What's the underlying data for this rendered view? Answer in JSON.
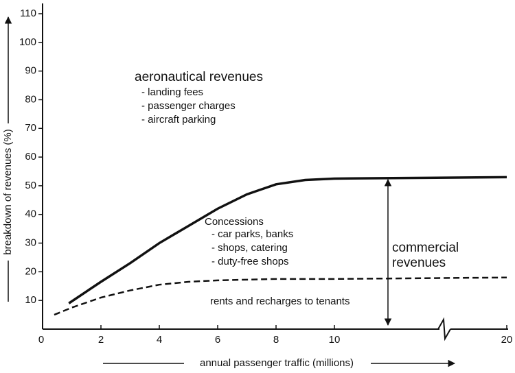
{
  "chart_data": {
    "type": "line",
    "y_label": "breakdown of revenues (%)",
    "x_label": "annual passenger traffic (millions)",
    "xticks": [
      0,
      2,
      4,
      6,
      8,
      10,
      20
    ],
    "ylim": [
      0,
      110
    ],
    "yticks": [
      10,
      20,
      30,
      40,
      50,
      60,
      70,
      80,
      90,
      100,
      110
    ],
    "series": [
      {
        "color": "#111111",
        "dash": false,
        "x": [
          0.9,
          2,
          3,
          4,
          5,
          6,
          7,
          8,
          9,
          10,
          20
        ],
        "values": [
          9,
          16.5,
          23,
          30,
          36,
          42,
          47,
          50.5,
          52,
          52.5,
          53
        ]
      },
      {
        "color": "#111111",
        "dash": true,
        "x": [
          0.4,
          1,
          2,
          3,
          4,
          5,
          6,
          8,
          10,
          20
        ],
        "values": [
          5,
          7.5,
          11,
          13.5,
          15.5,
          16.5,
          17,
          17.5,
          17.5,
          18
        ]
      }
    ],
    "annotations": [
      "aeronautical revenues",
      "- landing fees",
      "- passenger charges",
      "- aircraft parking",
      "Concessions",
      "- car parks, banks",
      "- shops, catering",
      "- duty-free shops",
      "commercial",
      "revenues",
      "rents and recharges to tenants"
    ]
  }
}
